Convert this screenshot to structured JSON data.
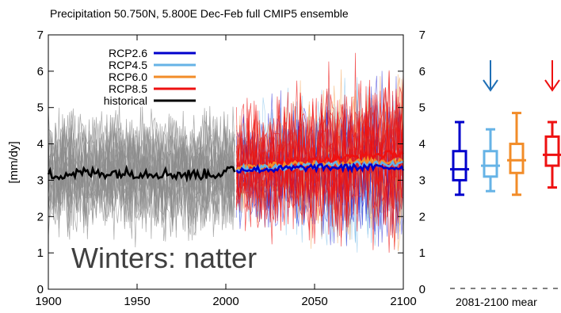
{
  "chart_data": {
    "type": "line",
    "title": "Precipitation 50.750N, 5.800E Dec-Feb full CMIP5 ensemble",
    "ylabel": "[mm/dy]",
    "xlim": [
      1900,
      2100
    ],
    "ylim": [
      0,
      7
    ],
    "x_ticks": [
      "1900",
      "1950",
      "2000",
      "2050",
      "2100"
    ],
    "y_ticks": [
      "0",
      "1",
      "2",
      "3",
      "4",
      "5",
      "6",
      "7"
    ],
    "grid": false,
    "legend_position": "top-left",
    "series": [
      {
        "name": "RCP2.6",
        "color": "#0000cc",
        "x": [
          2006,
          2025,
          2050,
          2075,
          2100
        ],
        "values": [
          3.3,
          3.3,
          3.35,
          3.35,
          3.35
        ]
      },
      {
        "name": "RCP4.5",
        "color": "#66b3e6",
        "x": [
          2006,
          2025,
          2050,
          2075,
          2100
        ],
        "values": [
          3.3,
          3.35,
          3.4,
          3.45,
          3.45
        ]
      },
      {
        "name": "RCP6.0",
        "color": "#f28c28",
        "x": [
          2006,
          2025,
          2050,
          2075,
          2100
        ],
        "values": [
          3.3,
          3.4,
          3.45,
          3.5,
          3.55
        ]
      },
      {
        "name": "RCP8.5",
        "color": "#ee1111",
        "x": [
          2006,
          2025,
          2050,
          2075,
          2100
        ],
        "values": [
          3.3,
          3.45,
          3.55,
          3.65,
          3.75
        ]
      },
      {
        "name": "historical",
        "color": "#000000",
        "x": [
          1900,
          1920,
          1940,
          1960,
          1980,
          2000,
          2005
        ],
        "values": [
          3.15,
          3.2,
          3.2,
          3.2,
          3.15,
          3.2,
          3.3
        ]
      }
    ],
    "boxplots": {
      "period_label": "2081-2100 mear",
      "boxes": [
        {
          "name": "RCP2.6",
          "color": "#0000cc",
          "min": 2.6,
          "q1": 3.0,
          "median": 3.3,
          "q3": 3.8,
          "max": 4.6
        },
        {
          "name": "RCP4.5",
          "color": "#66b3e6",
          "min": 2.7,
          "q1": 3.1,
          "median": 3.4,
          "q3": 3.8,
          "max": 4.4
        },
        {
          "name": "RCP6.0",
          "color": "#f28c28",
          "min": 2.6,
          "q1": 3.2,
          "median": 3.55,
          "q3": 4.0,
          "max": 4.85
        },
        {
          "name": "RCP8.5",
          "color": "#ee1111",
          "min": 2.8,
          "q1": 3.4,
          "median": 3.7,
          "q3": 4.2,
          "max": 4.6
        }
      ],
      "arrows": [
        {
          "above": "RCP4.5",
          "color": "#1f6fb5"
        },
        {
          "above": "RCP8.5",
          "color": "#ee1111"
        }
      ]
    },
    "annotation": "Winters: natter"
  }
}
